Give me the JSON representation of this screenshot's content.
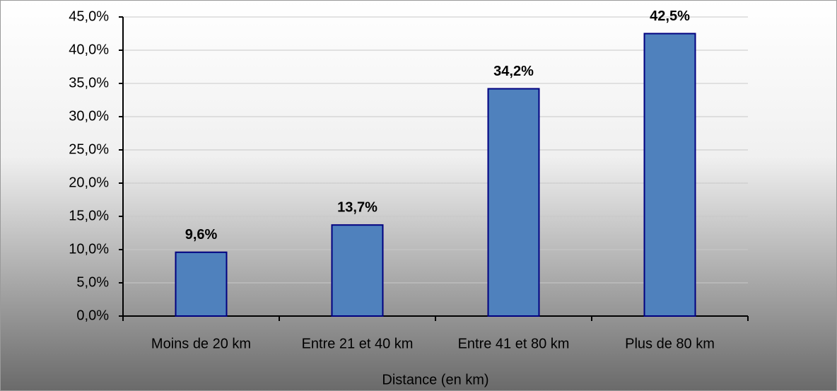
{
  "chart_data": {
    "type": "bar",
    "x_label": "Distance (en km)",
    "categories": [
      "Moins de 20 km",
      "Entre 21 et 40 km",
      "Entre 41 et 80 km",
      "Plus de 80 km"
    ],
    "values": [
      9.6,
      13.7,
      34.2,
      42.5
    ],
    "value_labels": [
      "9,6%",
      "13,7%",
      "34,2%",
      "42,5%"
    ],
    "color": "#4f81bd",
    "ylim": [
      0,
      45
    ],
    "yticks": [
      {
        "value": 0,
        "label": "0,0%"
      },
      {
        "value": 5,
        "label": "5,0%"
      },
      {
        "value": 10,
        "label": "10,0%"
      },
      {
        "value": 15,
        "label": "15,0%"
      },
      {
        "value": 20,
        "label": "20,0%"
      },
      {
        "value": 25,
        "label": "25,0%"
      },
      {
        "value": 30,
        "label": "30,0%"
      },
      {
        "value": 35,
        "label": "35,0%"
      },
      {
        "value": 40,
        "label": "40,0%"
      },
      {
        "value": 45,
        "label": "45,0%"
      }
    ],
    "grid": true
  }
}
